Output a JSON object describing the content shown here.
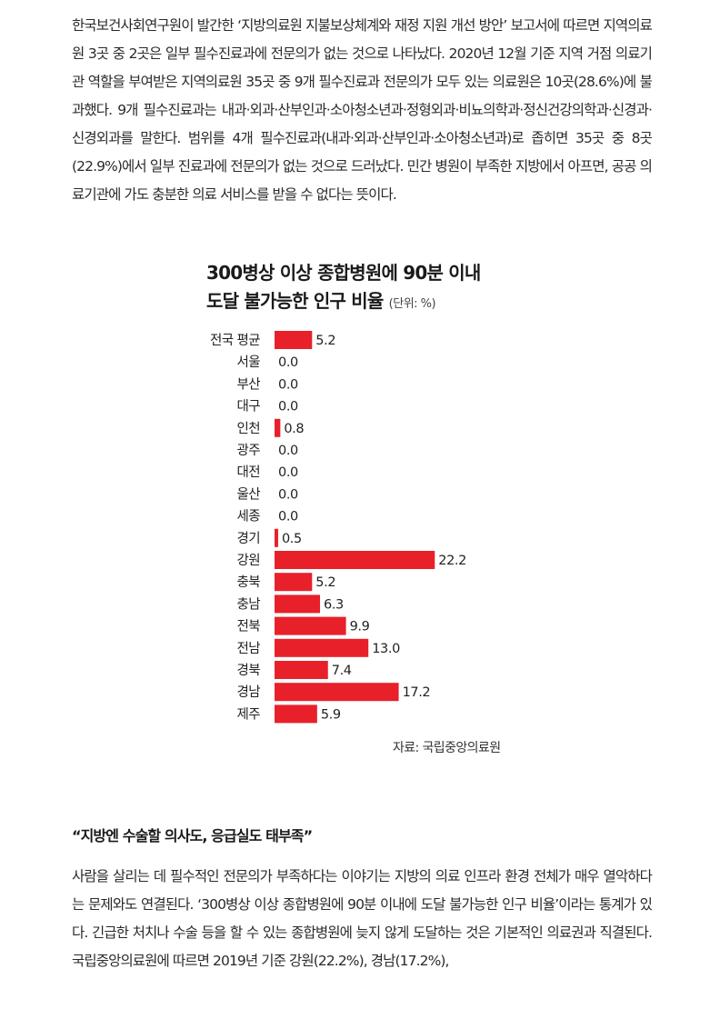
{
  "article": {
    "paragraph1": "한국보건사회연구원이 발간한 ‘지방의료원 지불보상체계와 재정 지원 개선 방안’ 보고서에 따르면 지역의료원 3곳 중 2곳은 일부 필수진료과에 전문의가 없는 것으로 나타났다. 2020년 12월 기준 지역 거점 의료기관 역할을 부여받은 지역의료원 35곳 중 9개 필수진료과 전문의가 모두 있는 의료원은 10곳(28.6%)에 불과했다. 9개 필수진료과는 내과·외과·산부인과·소아청소년과·정형외과·비뇨의학과·정신건강의학과·신경과·신경외과를 말한다. 범위를 4개 필수진료과(내과·외과·산부인과·소아청소년과)로 좁히면 35곳 중 8곳(22.9%)에서 일부 진료과에 전문의가 없는 것으로 드러났다. 민간 병원이 부족한 지방에서 아프면, 공공 의료기관에 가도 충분한 의료 서비스를 받을 수 없다는 뜻이다.",
    "subheading": "“지방엔 수술할 의사도, 응급실도 태부족”",
    "paragraph2": "사람을 살리는 데 필수적인 전문의가 부족하다는 이야기는 지방의 의료 인프라 환경 전체가 매우 열악하다는 문제와도 연결된다. ‘300병상 이상 종합병원에 90분 이내에 도달 불가능한 인구 비율’이라는 통계가 있다. 긴급한 처치나 수술 등을 할 수 있는 종합병원에 늦지 않게 도달하는 것은 기본적인 의료권과 직결된다. 국립중앙의료원에 따르면 2019년 기준 강원(22.2%), 경남(17.2%),"
  },
  "chart_data": {
    "type": "bar",
    "orientation": "horizontal",
    "title_line1": "300병상 이상 종합병원에 90분 이내",
    "title_line2": "도달 불가능한 인구 비율",
    "unit": "(단위: %)",
    "categories": [
      "전국 평균",
      "서울",
      "부산",
      "대구",
      "인천",
      "광주",
      "대전",
      "울산",
      "세종",
      "경기",
      "강원",
      "충북",
      "충남",
      "전북",
      "전남",
      "경북",
      "경남",
      "제주"
    ],
    "values": [
      5.2,
      0.0,
      0.0,
      0.0,
      0.8,
      0.0,
      0.0,
      0.0,
      0.0,
      0.5,
      22.2,
      5.2,
      6.3,
      9.9,
      13.0,
      7.4,
      17.2,
      5.9
    ],
    "value_labels": [
      "5.2",
      "0.0",
      "0.0",
      "0.0",
      "0.8",
      "0.0",
      "0.0",
      "0.0",
      "0.0",
      "0.5",
      "22.2",
      "5.2",
      "6.3",
      "9.9",
      "13.0",
      "7.4",
      "17.2",
      "5.9"
    ],
    "source": "자료: 국립중앙의료원",
    "bar_color": "#e8202a",
    "grid": false
  }
}
